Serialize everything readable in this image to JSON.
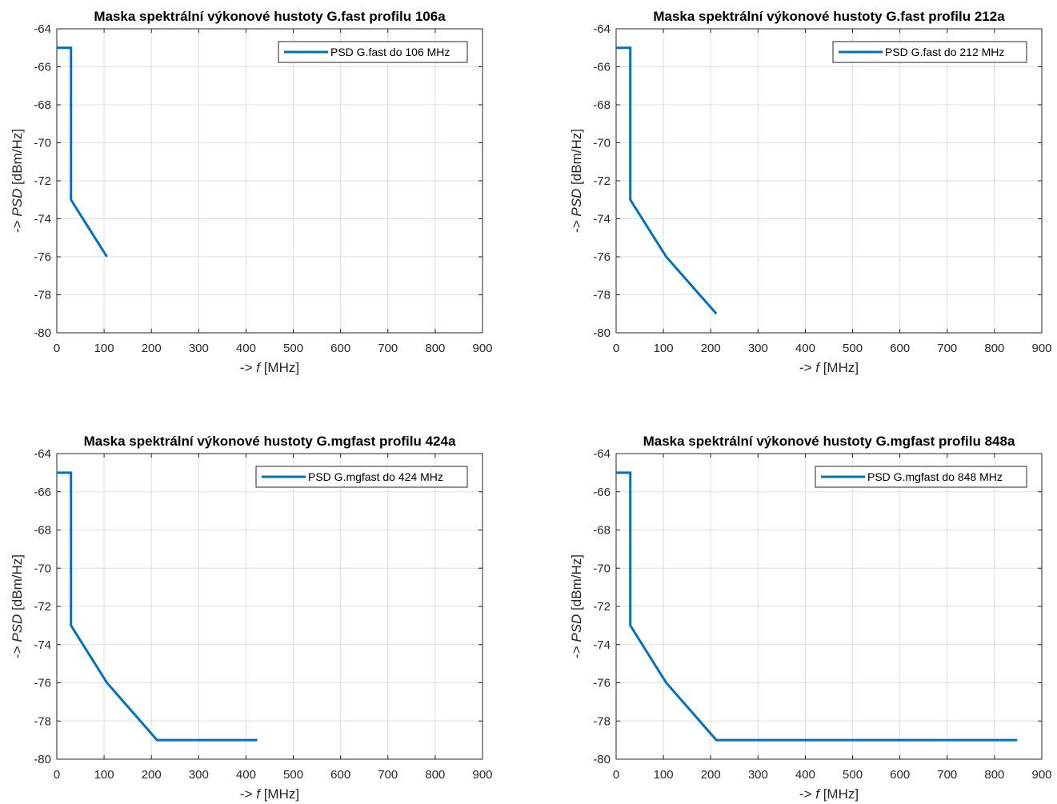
{
  "colors": {
    "series": "#0072bd",
    "grid": "#dfdfdf",
    "axis": "#262626",
    "background": "#ffffff"
  },
  "chart_data": [
    {
      "type": "line",
      "title": "Maska spektrální výkonové hustoty G.fast profilu 106a",
      "xlabel_prefix": "-> ",
      "xlabel_var": "f",
      "xlabel_unit": " [MHz]",
      "ylabel_prefix": "-> ",
      "ylabel_var": "PSD",
      "ylabel_unit": " [dBm/Hz]",
      "xlim": [
        0,
        900
      ],
      "ylim": [
        -80,
        -64
      ],
      "xticks": [
        "0",
        "100",
        "200",
        "300",
        "400",
        "500",
        "600",
        "700",
        "800",
        "900"
      ],
      "yticks": [
        "-64",
        "-66",
        "-68",
        "-70",
        "-72",
        "-74",
        "-76",
        "-78",
        "-80"
      ],
      "grid": true,
      "legend_position": "top-right",
      "series": [
        {
          "name": "PSD G.fast do 106 MHz",
          "x": [
            0,
            30,
            30,
            106
          ],
          "y": [
            -65,
            -65,
            -73,
            -76
          ]
        }
      ]
    },
    {
      "type": "line",
      "title": "Maska spektrální výkonové hustoty G.fast profilu 212a",
      "xlabel_prefix": "-> ",
      "xlabel_var": "f",
      "xlabel_unit": " [MHz]",
      "ylabel_prefix": "-> ",
      "ylabel_var": "PSD",
      "ylabel_unit": " [dBm/Hz]",
      "xlim": [
        0,
        900
      ],
      "ylim": [
        -80,
        -64
      ],
      "xticks": [
        "0",
        "100",
        "200",
        "300",
        "400",
        "500",
        "600",
        "700",
        "800",
        "900"
      ],
      "yticks": [
        "-64",
        "-66",
        "-68",
        "-70",
        "-72",
        "-74",
        "-76",
        "-78",
        "-80"
      ],
      "grid": true,
      "legend_position": "top-right",
      "series": [
        {
          "name": "PSD G.fast do 212 MHz",
          "x": [
            0,
            30,
            30,
            106,
            212
          ],
          "y": [
            -65,
            -65,
            -73,
            -76,
            -79
          ]
        }
      ]
    },
    {
      "type": "line",
      "title": "Maska spektrální výkonové hustoty G.mgfast profilu 424a",
      "xlabel_prefix": "-> ",
      "xlabel_var": "f",
      "xlabel_unit": " [MHz]",
      "ylabel_prefix": "-> ",
      "ylabel_var": "PSD",
      "ylabel_unit": " [dBm/Hz]",
      "xlim": [
        0,
        900
      ],
      "ylim": [
        -80,
        -64
      ],
      "xticks": [
        "0",
        "100",
        "200",
        "300",
        "400",
        "500",
        "600",
        "700",
        "800",
        "900"
      ],
      "yticks": [
        "-64",
        "-66",
        "-68",
        "-70",
        "-72",
        "-74",
        "-76",
        "-78",
        "-80"
      ],
      "grid": true,
      "legend_position": "top-right",
      "series": [
        {
          "name": "PSD G.mgfast do 424 MHz",
          "x": [
            0,
            30,
            30,
            106,
            212,
            424
          ],
          "y": [
            -65,
            -65,
            -73,
            -76,
            -79,
            -79
          ]
        }
      ]
    },
    {
      "type": "line",
      "title": "Maska spektrální výkonové hustoty G.mgfast profilu 848a",
      "xlabel_prefix": "-> ",
      "xlabel_var": "f",
      "xlabel_unit": " [MHz]",
      "ylabel_prefix": "-> ",
      "ylabel_var": "PSD",
      "ylabel_unit": " [dBm/Hz]",
      "xlim": [
        0,
        900
      ],
      "ylim": [
        -80,
        -64
      ],
      "xticks": [
        "0",
        "100",
        "200",
        "300",
        "400",
        "500",
        "600",
        "700",
        "800",
        "900"
      ],
      "yticks": [
        "-64",
        "-66",
        "-68",
        "-70",
        "-72",
        "-74",
        "-76",
        "-78",
        "-80"
      ],
      "grid": true,
      "legend_position": "top-right",
      "series": [
        {
          "name": "PSD G.mgfast do 848 MHz",
          "x": [
            0,
            30,
            30,
            106,
            212,
            848
          ],
          "y": [
            -65,
            -65,
            -73,
            -76,
            -79,
            -79
          ]
        }
      ]
    }
  ]
}
